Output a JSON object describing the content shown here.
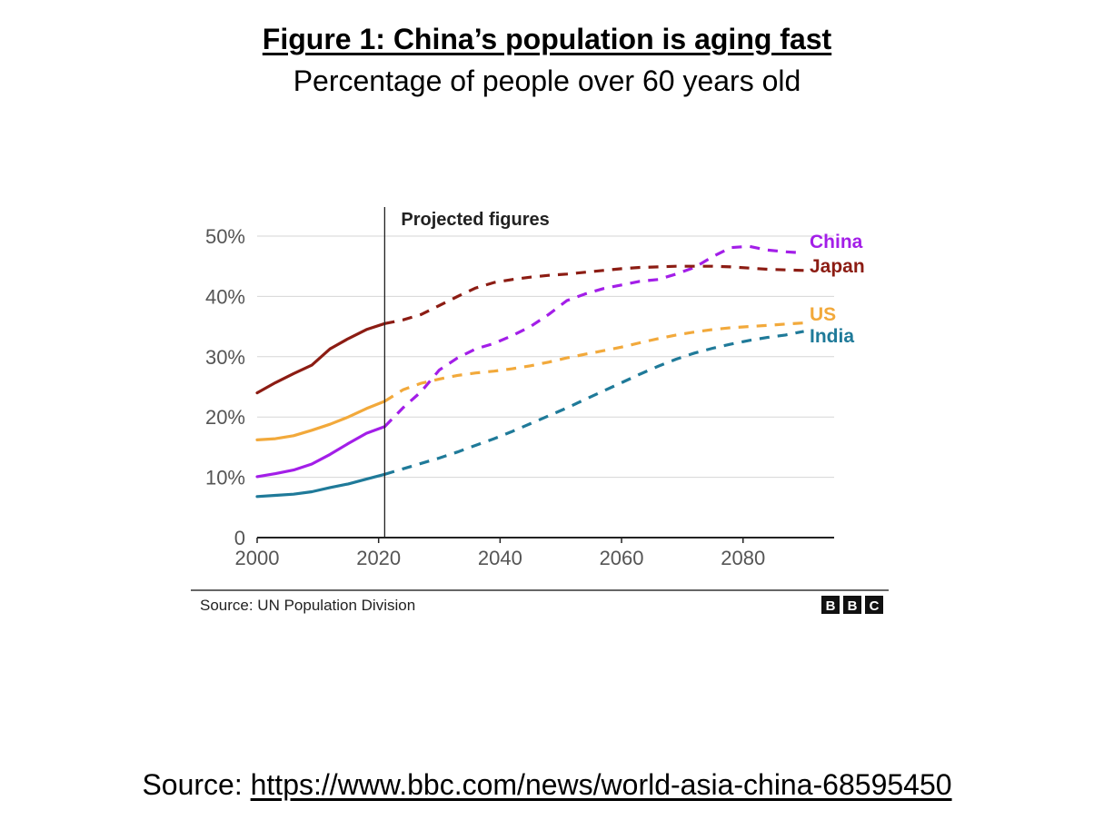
{
  "figure": {
    "title": "Figure 1: China’s population is aging fast",
    "subtitle": "Percentage of people over 60 years old"
  },
  "footer": {
    "label": "Source:",
    "url": "https://www.bbc.com/news/world-asia-china-68595450"
  },
  "chart_data": {
    "type": "line",
    "title": "Figure 1: China’s population is aging fast",
    "subtitle": "Percentage of people over 60 years old",
    "annotation": "Projected figures",
    "projection_start": 2021,
    "source_note": "Source: UN Population Division",
    "logo": [
      "B",
      "B",
      "C"
    ],
    "xlabel": "",
    "ylabel": "",
    "xlim": [
      2000,
      2095
    ],
    "ylim": [
      0,
      50
    ],
    "x_ticks": [
      2000,
      2020,
      2040,
      2060,
      2080
    ],
    "x_tick_labels": [
      "2000",
      "2020",
      "2040",
      "2060",
      "2080"
    ],
    "y_ticks": [
      0,
      10,
      20,
      30,
      40,
      50
    ],
    "y_tick_labels": [
      "0",
      "10%",
      "20%",
      "30%",
      "40%",
      "50%"
    ],
    "grid": true,
    "legend": "inline-right",
    "series": [
      {
        "name": "China",
        "color": "#a31ee8",
        "points": [
          [
            2000,
            10.1
          ],
          [
            2003,
            10.6
          ],
          [
            2006,
            11.2
          ],
          [
            2009,
            12.2
          ],
          [
            2012,
            13.8
          ],
          [
            2015,
            15.6
          ],
          [
            2018,
            17.3
          ],
          [
            2021,
            18.4
          ],
          [
            2024,
            21.5
          ],
          [
            2027,
            24.2
          ],
          [
            2030,
            27.8
          ],
          [
            2033,
            29.8
          ],
          [
            2036,
            31.3
          ],
          [
            2039,
            32.2
          ],
          [
            2042,
            33.5
          ],
          [
            2045,
            35.0
          ],
          [
            2048,
            37.0
          ],
          [
            2051,
            39.3
          ],
          [
            2054,
            40.4
          ],
          [
            2057,
            41.3
          ],
          [
            2060,
            41.9
          ],
          [
            2063,
            42.5
          ],
          [
            2066,
            42.8
          ],
          [
            2069,
            43.7
          ],
          [
            2072,
            44.8
          ],
          [
            2075,
            46.6
          ],
          [
            2078,
            48.1
          ],
          [
            2081,
            48.3
          ],
          [
            2084,
            47.7
          ],
          [
            2087,
            47.4
          ],
          [
            2090,
            47.2
          ]
        ]
      },
      {
        "name": "Japan",
        "color": "#8c1c13",
        "points": [
          [
            2000,
            24.0
          ],
          [
            2003,
            25.7
          ],
          [
            2006,
            27.2
          ],
          [
            2009,
            28.6
          ],
          [
            2012,
            31.3
          ],
          [
            2015,
            33.0
          ],
          [
            2018,
            34.5
          ],
          [
            2021,
            35.5
          ],
          [
            2024,
            36.1
          ],
          [
            2027,
            37.0
          ],
          [
            2030,
            38.5
          ],
          [
            2033,
            40.0
          ],
          [
            2036,
            41.4
          ],
          [
            2039,
            42.3
          ],
          [
            2042,
            42.8
          ],
          [
            2045,
            43.2
          ],
          [
            2048,
            43.5
          ],
          [
            2051,
            43.7
          ],
          [
            2054,
            44.0
          ],
          [
            2057,
            44.3
          ],
          [
            2060,
            44.6
          ],
          [
            2063,
            44.8
          ],
          [
            2066,
            44.9
          ],
          [
            2069,
            45.0
          ],
          [
            2072,
            45.0
          ],
          [
            2075,
            45.0
          ],
          [
            2078,
            44.9
          ],
          [
            2081,
            44.7
          ],
          [
            2084,
            44.5
          ],
          [
            2087,
            44.4
          ],
          [
            2090,
            44.3
          ]
        ]
      },
      {
        "name": "US",
        "color": "#f2a93b",
        "points": [
          [
            2000,
            16.2
          ],
          [
            2003,
            16.4
          ],
          [
            2006,
            16.9
          ],
          [
            2009,
            17.8
          ],
          [
            2012,
            18.8
          ],
          [
            2015,
            20.0
          ],
          [
            2018,
            21.4
          ],
          [
            2021,
            22.6
          ],
          [
            2024,
            24.5
          ],
          [
            2027,
            25.6
          ],
          [
            2030,
            26.3
          ],
          [
            2033,
            26.9
          ],
          [
            2036,
            27.3
          ],
          [
            2039,
            27.6
          ],
          [
            2042,
            28.0
          ],
          [
            2045,
            28.5
          ],
          [
            2048,
            29.1
          ],
          [
            2051,
            29.8
          ],
          [
            2054,
            30.4
          ],
          [
            2057,
            31.0
          ],
          [
            2060,
            31.6
          ],
          [
            2063,
            32.3
          ],
          [
            2066,
            33.0
          ],
          [
            2069,
            33.6
          ],
          [
            2072,
            34.1
          ],
          [
            2075,
            34.5
          ],
          [
            2078,
            34.8
          ],
          [
            2081,
            35.0
          ],
          [
            2084,
            35.2
          ],
          [
            2087,
            35.4
          ],
          [
            2090,
            35.6
          ]
        ]
      },
      {
        "name": "India",
        "color": "#1f7a99",
        "points": [
          [
            2000,
            6.8
          ],
          [
            2003,
            7.0
          ],
          [
            2006,
            7.2
          ],
          [
            2009,
            7.6
          ],
          [
            2012,
            8.3
          ],
          [
            2015,
            8.9
          ],
          [
            2018,
            9.7
          ],
          [
            2021,
            10.5
          ],
          [
            2024,
            11.4
          ],
          [
            2027,
            12.3
          ],
          [
            2030,
            13.2
          ],
          [
            2033,
            14.2
          ],
          [
            2036,
            15.3
          ],
          [
            2039,
            16.4
          ],
          [
            2042,
            17.6
          ],
          [
            2045,
            18.9
          ],
          [
            2048,
            20.2
          ],
          [
            2051,
            21.5
          ],
          [
            2054,
            22.9
          ],
          [
            2057,
            24.3
          ],
          [
            2060,
            25.7
          ],
          [
            2063,
            27.1
          ],
          [
            2066,
            28.4
          ],
          [
            2069,
            29.6
          ],
          [
            2072,
            30.6
          ],
          [
            2075,
            31.4
          ],
          [
            2078,
            32.1
          ],
          [
            2081,
            32.7
          ],
          [
            2084,
            33.2
          ],
          [
            2087,
            33.6
          ],
          [
            2090,
            34.2
          ]
        ]
      }
    ],
    "series_labels": [
      "China",
      "Japan",
      "US",
      "India"
    ]
  }
}
